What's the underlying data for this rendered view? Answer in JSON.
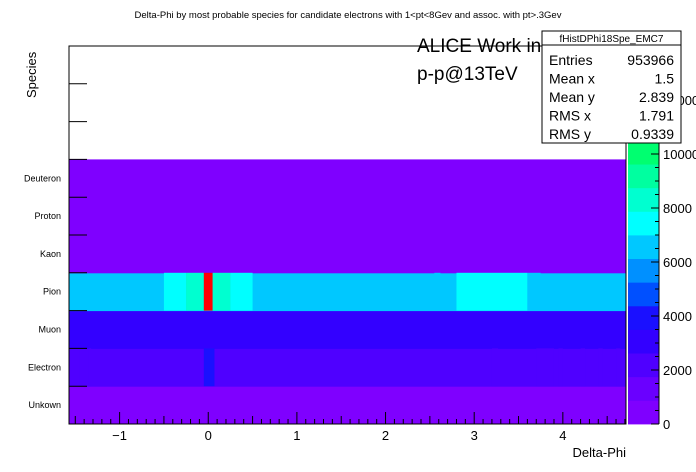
{
  "chart_data": {
    "type": "heatmap",
    "title": "Delta-Phi by most probable species for candidate electrons with 1<pt<8Gev and assoc. with pt>.3Gev",
    "xlabel": "Delta-Phi",
    "ylabel": "Species",
    "xlim": [
      -1.5708,
      4.7124
    ],
    "x_ticks": [
      -1,
      0,
      1,
      2,
      3,
      4
    ],
    "x_tick_labels": [
      "−1",
      "0",
      "1",
      "2",
      "3",
      "4"
    ],
    "categories": [
      "Unkown",
      "Electron",
      "Muon",
      "Pion",
      "Kaon",
      "Proton",
      "Deuteron"
    ],
    "empty_rows_above": 3,
    "z_range": [
      0,
      14000
    ],
    "z_ticks": [
      0,
      2000,
      4000,
      6000,
      8000,
      10000,
      12000
    ],
    "z_tick_labels": [
      "0",
      "2000",
      "4000",
      "6000",
      "8000",
      "10000",
      "12000"
    ],
    "row_values": {
      "Unkown": 0,
      "Electron": 2600,
      "Muon": 2800,
      "Pion": 6300,
      "Kaon": 0,
      "Proton": 0,
      "Deuteron": 0
    },
    "pion_peaks": [
      {
        "x_range": [
          -0.5,
          -0.25
        ],
        "value": 7000
      },
      {
        "x_range": [
          -0.25,
          -0.05
        ],
        "value": 8200
      },
      {
        "x_range": [
          -0.05,
          0.05
        ],
        "value": 13800
      },
      {
        "x_range": [
          0.05,
          0.25
        ],
        "value": 8200
      },
      {
        "x_range": [
          0.25,
          0.5
        ],
        "value": 7000
      },
      {
        "x_range": [
          2.55,
          2.62
        ],
        "value": 6800
      },
      {
        "x_range": [
          2.8,
          3.6
        ],
        "value": 7200
      },
      {
        "x_range": [
          3.6,
          3.75
        ],
        "value": 6800
      }
    ],
    "electron_spots": [
      {
        "x_range": [
          -1.57,
          -1.45
        ],
        "value": 2000
      },
      {
        "x_range": [
          -1.35,
          -1.32
        ],
        "value": 2000
      },
      {
        "x_range": [
          -0.05,
          0.07
        ],
        "value": 3600
      },
      {
        "x_range": [
          3.2,
          3.27
        ],
        "value": 1800
      },
      {
        "x_range": [
          3.7,
          3.9
        ],
        "value": 2000
      },
      {
        "x_range": [
          3.95,
          4.0
        ],
        "value": 2000
      },
      {
        "x_range": [
          4.2,
          4.25
        ],
        "value": 2000
      },
      {
        "x_range": [
          4.4,
          4.45
        ],
        "value": 2000
      },
      {
        "x_range": [
          4.6,
          4.65
        ],
        "value": 2000
      }
    ],
    "stats": {
      "name": "fHistDPhi18Spe_EMC7",
      "rows": [
        {
          "label": "Entries",
          "value": "953966"
        },
        {
          "label": "Mean x",
          "value": "1.5"
        },
        {
          "label": "Mean y",
          "value": "2.839"
        },
        {
          "label": "RMS x",
          "value": "1.791"
        },
        {
          "label": "RMS y",
          "value": "0.9339"
        }
      ]
    },
    "watermark": [
      "ALICE Work in Progress",
      "p-p@13TeV"
    ],
    "palette": [
      "#7f00ff",
      "#6a00ff",
      "#4f00ff",
      "#3300ff",
      "#1a10ff",
      "#0050ff",
      "#0090ff",
      "#00c8ff",
      "#00ffff",
      "#00ffd0",
      "#00ffa0",
      "#00ff70",
      "#00ff40",
      "#30ff10",
      "#80ff00",
      "#c0ff00"
    ],
    "peak_color": "#ff0000"
  }
}
